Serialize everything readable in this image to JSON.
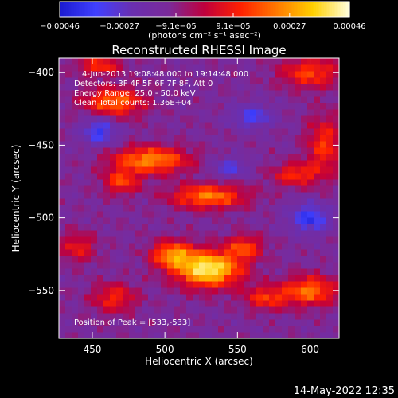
{
  "chart_data": {
    "type": "heatmap",
    "title": "Reconstructed RHESSI Image",
    "xlabel": "Heliocentric X (arcsec)",
    "ylabel": "Heliocentric Y (arcsec)",
    "xlim": [
      427,
      620
    ],
    "ylim": [
      -583,
      -390
    ],
    "x_ticks": [
      450,
      500,
      550,
      600
    ],
    "y_ticks": [
      -400,
      -450,
      -500,
      -550
    ],
    "x_tick_labels": [
      "450",
      "500",
      "550",
      "600"
    ],
    "y_tick_labels": [
      "−400",
      "−450",
      "−500",
      "−550"
    ],
    "colorbar": {
      "range": [
        -0.00046,
        0.00046
      ],
      "ticks": [
        -0.00046,
        -0.00027,
        -9.1e-05,
        9.1e-05,
        0.00027,
        0.00046
      ],
      "tick_labels": [
        "−0.00046",
        "−0.00027",
        "−9.1e−05",
        "9.1e−05",
        "0.00027",
        "0.00046"
      ],
      "unit_label": "(photons cm⁻² s⁻¹ asec⁻²)",
      "colors": [
        "#1a1ad0",
        "#4040ff",
        "#6a2fb0",
        "#7a2a9a",
        "#c0003c",
        "#ff2000",
        "#ff7a00",
        "#ffd000",
        "#ffffe0"
      ]
    },
    "annotations": [
      "4-Jun-2013 19:08:48.000 to 19:14:48.000",
      "Detectors: 3F 4F 5F 6F 7F 8F, Att 0",
      "Energy Range: 25.0 - 50.0 keV",
      "Clean    Total counts: 1.36E+04"
    ],
    "peak_label": "Position of Peak = [533,-533]",
    "peak": [
      533,
      -533
    ],
    "blobs": [
      {
        "x": 530,
        "y": -535,
        "rx": 22,
        "ry": 12,
        "amp": 1.25
      },
      {
        "x": 505,
        "y": -525,
        "rx": 14,
        "ry": 9,
        "amp": 0.8
      },
      {
        "x": 555,
        "y": -520,
        "rx": 12,
        "ry": 8,
        "amp": 0.6
      },
      {
        "x": 490,
        "y": -460,
        "rx": 26,
        "ry": 9,
        "amp": 0.85
      },
      {
        "x": 530,
        "y": -485,
        "rx": 25,
        "ry": 8,
        "amp": 0.8
      },
      {
        "x": 465,
        "y": -420,
        "rx": 20,
        "ry": 10,
        "amp": 0.75
      },
      {
        "x": 470,
        "y": -475,
        "rx": 12,
        "ry": 8,
        "amp": 0.6
      },
      {
        "x": 600,
        "y": -400,
        "rx": 20,
        "ry": 10,
        "amp": 0.6
      },
      {
        "x": 610,
        "y": -450,
        "rx": 12,
        "ry": 20,
        "amp": 0.55
      },
      {
        "x": 590,
        "y": -470,
        "rx": 15,
        "ry": 8,
        "amp": 0.55
      },
      {
        "x": 600,
        "y": -550,
        "rx": 18,
        "ry": 10,
        "amp": 0.75
      },
      {
        "x": 570,
        "y": -555,
        "rx": 15,
        "ry": 8,
        "amp": 0.55
      },
      {
        "x": 465,
        "y": -555,
        "rx": 15,
        "ry": 10,
        "amp": 0.5
      },
      {
        "x": 440,
        "y": -520,
        "rx": 12,
        "ry": 10,
        "amp": 0.45
      },
      {
        "x": 455,
        "y": -395,
        "rx": 15,
        "ry": 6,
        "amp": 0.55
      },
      {
        "x": 560,
        "y": -430,
        "rx": 14,
        "ry": 8,
        "amp": -0.5
      },
      {
        "x": 455,
        "y": -440,
        "rx": 12,
        "ry": 10,
        "amp": -0.55
      },
      {
        "x": 600,
        "y": -500,
        "rx": 14,
        "ry": 10,
        "amp": -0.6
      },
      {
        "x": 545,
        "y": -465,
        "rx": 12,
        "ry": 7,
        "amp": -0.4
      }
    ]
  },
  "footer": {
    "timestamp": "14-May-2022 12:35"
  }
}
